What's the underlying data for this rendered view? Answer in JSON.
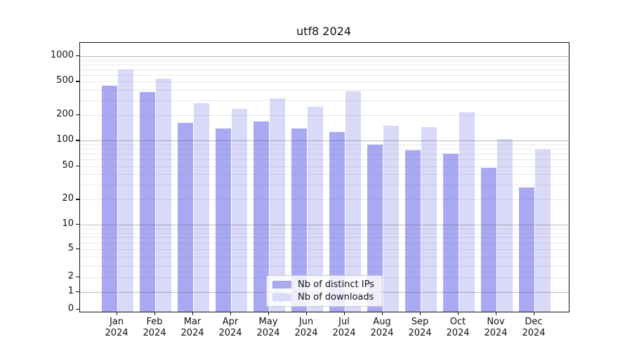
{
  "chart_data": {
    "type": "bar",
    "title": "utf8 2024",
    "categories": [
      "Jan",
      "Feb",
      "Mar",
      "Apr",
      "May",
      "Jun",
      "Jul",
      "Aug",
      "Sep",
      "Oct",
      "Nov",
      "Dec"
    ],
    "year_label": "2024",
    "series": [
      {
        "name": "Nb of distinct IPs",
        "color": "#a9a9f3",
        "values": [
          448,
          377,
          163,
          140,
          170,
          139,
          126,
          90,
          77,
          70,
          48,
          28
        ]
      },
      {
        "name": "Nb of downloads",
        "color": "#d9d9f8",
        "values": [
          700,
          540,
          276,
          238,
          318,
          251,
          382,
          150,
          145,
          216,
          104,
          78
        ]
      }
    ],
    "yticks": [
      0,
      1,
      2,
      5,
      10,
      20,
      50,
      100,
      200,
      500,
      1000
    ],
    "ytick_labels": [
      "0",
      "1",
      "2",
      "5",
      "10",
      "20",
      "50",
      "100",
      "200",
      "500",
      "1000"
    ],
    "yscale": "asinh (log-like, includes 0)",
    "ylim": [
      0,
      1440
    ],
    "grid": "horizontal major and minor gridlines, drawn over bars",
    "legend_position": "lower center",
    "axis_color": "#111111",
    "grid_major_color": "#b5b5b5",
    "grid_minor_color": "#e9e9e9",
    "background_color": "#ffffff"
  }
}
